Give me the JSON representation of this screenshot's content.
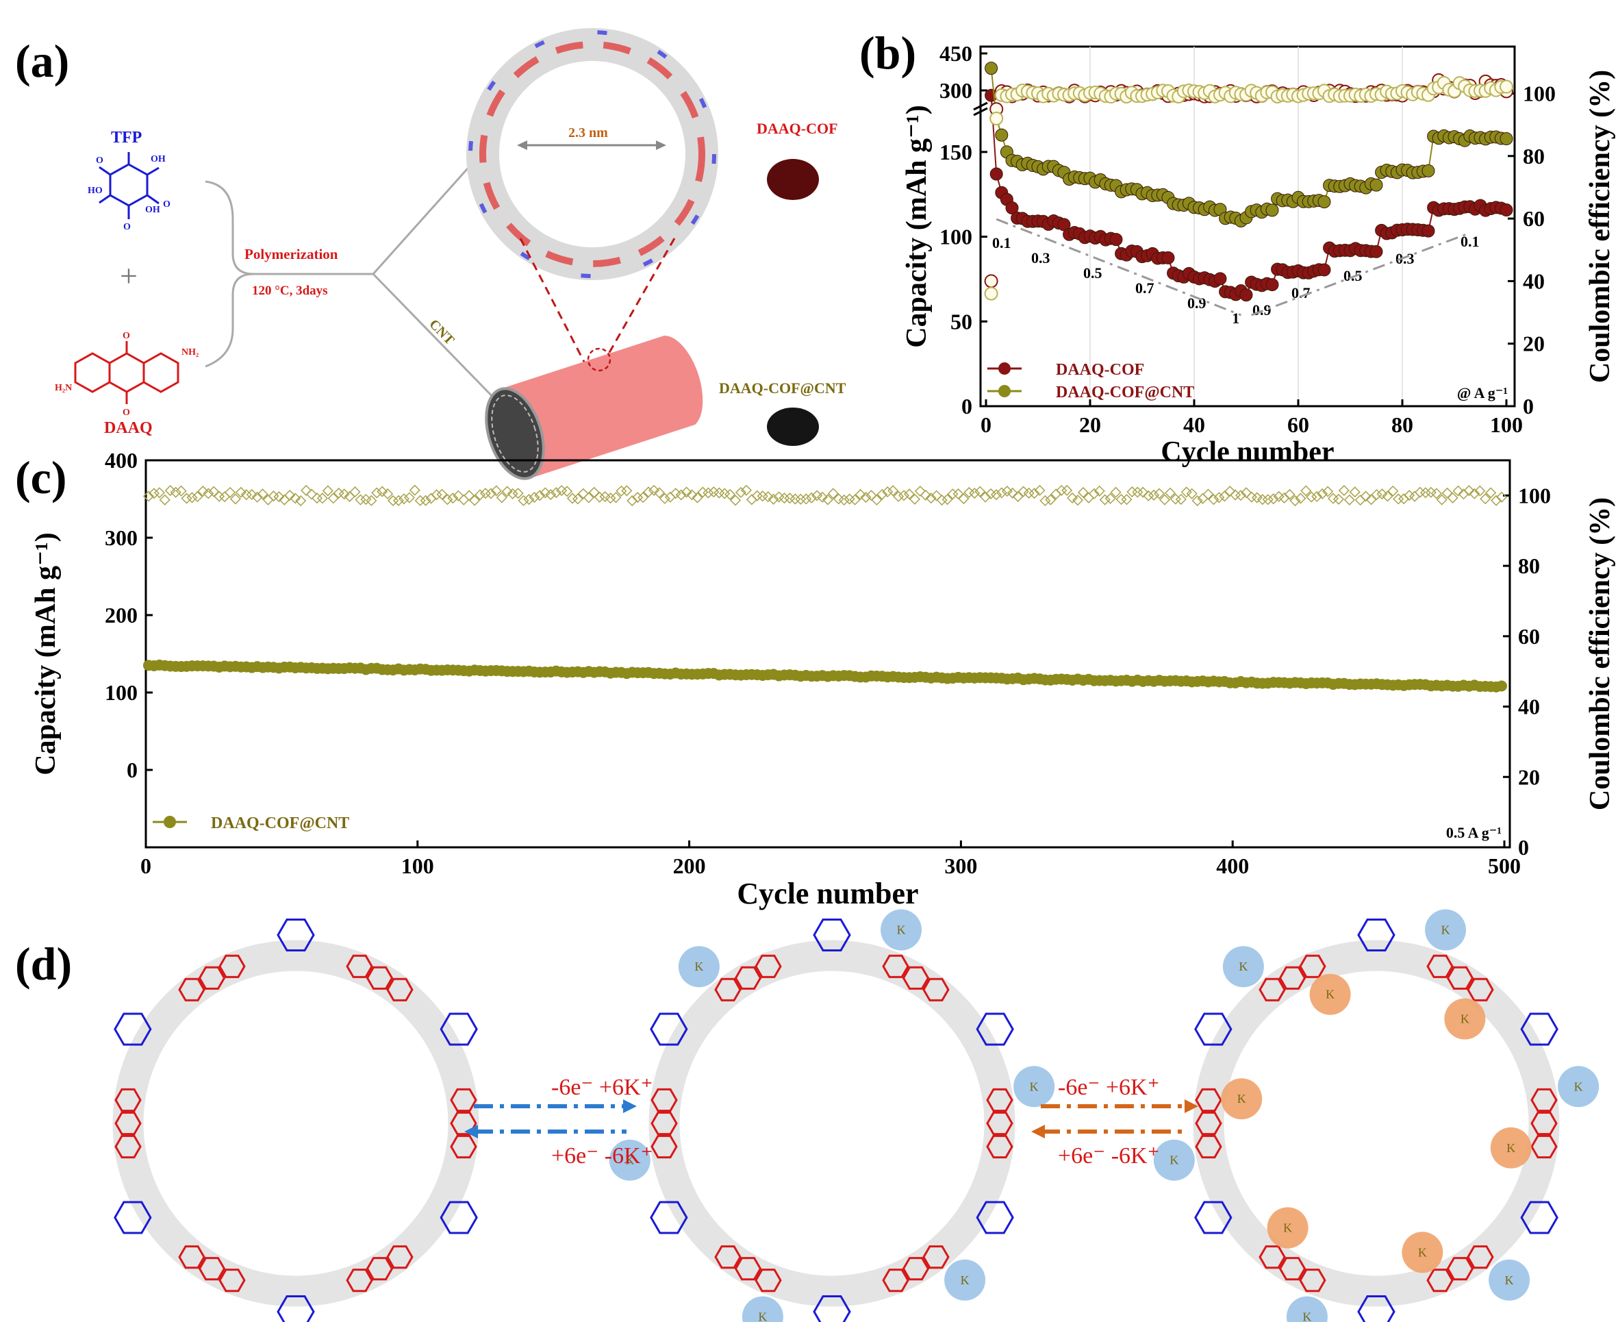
{
  "panels": {
    "a": {
      "label": "(a)",
      "tfp": "TFP",
      "plus": "+",
      "daaq": "DAAQ",
      "polymerization": "Polymerization",
      "condition": "120 °C, 3days",
      "cnt": "CNT",
      "pore": "2.3 nm",
      "product1": "DAAQ-COF",
      "product2": "DAAQ-COF@CNT",
      "colors": {
        "tfp": "#1a1ad6",
        "daaq": "#d81818",
        "cof_powder": "#5a0c0c",
        "cnt_powder": "#151515",
        "tube": "#f28a8a"
      }
    },
    "b": {
      "label": "(b)"
    },
    "c": {
      "label": "(c)"
    },
    "d": {
      "label": "(d)",
      "arrow1_top": "-6e⁻ +6K⁺",
      "arrow1_bottom": "+6e⁻ -6K⁺",
      "arrow2_top": "-6e⁻ +6K⁺",
      "arrow2_bottom": "+6e⁻ -6K⁺",
      "k": "K",
      "colors": {
        "arrow1": "#2b7bd0",
        "arrow2": "#d4661a",
        "k_blue": "#9cc3e8",
        "k_orange": "#f0a26a"
      }
    }
  },
  "chart_data": [
    {
      "panel": "b",
      "type": "scatter",
      "xlabel": "Cycle number",
      "ylabel": "Capacity (mAh g⁻¹)",
      "y2label": "Coulombic efficiency (%)",
      "xlim": [
        0,
        100
      ],
      "xticks": [
        0,
        20,
        40,
        60,
        80,
        100
      ],
      "y_broken_axis": {
        "lower": [
          0,
          175
        ],
        "upper": [
          250,
          450
        ]
      },
      "yticks": [
        0,
        50,
        100,
        150,
        300,
        450
      ],
      "y2lim": [
        0,
        115
      ],
      "y2ticks": [
        0,
        20,
        40,
        60,
        80,
        100
      ],
      "rate_steps_down": [
        {
          "rate": "0.1",
          "cycles": [
            1,
            5
          ]
        },
        {
          "rate": "0.3",
          "cycles": [
            6,
            15
          ]
        },
        {
          "rate": "0.5",
          "cycles": [
            16,
            25
          ]
        },
        {
          "rate": "0.7",
          "cycles": [
            26,
            35
          ]
        },
        {
          "rate": "0.9",
          "cycles": [
            36,
            45
          ]
        },
        {
          "rate": "1",
          "cycles": [
            46,
            50
          ]
        }
      ],
      "rate_steps_up": [
        {
          "rate": "0.9",
          "cycles": [
            51,
            55
          ]
        },
        {
          "rate": "0.7",
          "cycles": [
            56,
            65
          ]
        },
        {
          "rate": "0.5",
          "cycles": [
            66,
            75
          ]
        },
        {
          "rate": "0.3",
          "cycles": [
            76,
            85
          ]
        },
        {
          "rate": "0.1",
          "cycles": [
            86,
            100
          ]
        }
      ],
      "series": [
        {
          "name": "DAAQ-COF",
          "color": "#8a1414",
          "axis": "capacity",
          "levels": {
            "0.1": 117,
            "0.3": 111,
            "0.5": 102,
            "0.7": 91,
            "0.9": 78,
            "1": 68
          },
          "first_cycles": [
            280,
            137,
            126,
            122,
            117
          ],
          "recover": {
            "0.9": 72,
            "0.7": 80,
            "0.5": 92,
            "0.3": 103,
            "0.1": 117
          }
        },
        {
          "name": "DAAQ-COF@CNT",
          "color": "#8c8a1a",
          "axis": "capacity",
          "levels": {
            "0.1": 160,
            "0.3": 143,
            "0.5": 135,
            "0.7": 128,
            "0.9": 120,
            "1": 112
          },
          "first_cycles": [
            390,
            170,
            160,
            150,
            145
          ],
          "recover": {
            "0.9": 115,
            "0.7": 122,
            "0.5": 130,
            "0.3": 138,
            "0.1": 158
          }
        },
        {
          "name": "CE DAAQ-COF",
          "color": "#8a1414",
          "axis": "efficiency",
          "hollow": true,
          "mean": 100,
          "first": [
            40,
            95
          ]
        },
        {
          "name": "CE DAAQ-COF@CNT",
          "color": "#b8b45a",
          "axis": "efficiency",
          "hollow": true,
          "mean": 100,
          "first": [
            36,
            92
          ]
        }
      ],
      "legend": [
        "DAAQ-COF",
        "DAAQ-COF@CNT"
      ],
      "legend_position": "bottom-left",
      "annotation": "@ A g⁻¹"
    },
    {
      "panel": "c",
      "type": "scatter",
      "xlabel": "Cycle number",
      "ylabel": "Capacity (mAh g⁻¹)",
      "y2label": "Coulombic efficiency (%)",
      "xlim": [
        0,
        500
      ],
      "xticks": [
        0,
        100,
        200,
        300,
        400,
        500
      ],
      "ylim": [
        -100,
        400
      ],
      "yticks": [
        0,
        100,
        200,
        300,
        400
      ],
      "y2lim": [
        0,
        110
      ],
      "y2ticks": [
        0,
        20,
        40,
        60,
        80,
        100
      ],
      "series": [
        {
          "name": "DAAQ-COF@CNT",
          "color": "#8c8a1a",
          "axis": "capacity",
          "start": 135,
          "end": 108
        },
        {
          "name": "CE",
          "color": "#a8a24a",
          "axis": "efficiency",
          "hollow": true,
          "mean": 100
        }
      ],
      "legend": [
        "DAAQ-COF@CNT"
      ],
      "legend_position": "bottom-left",
      "annotation": "0.5 A g⁻¹"
    }
  ]
}
